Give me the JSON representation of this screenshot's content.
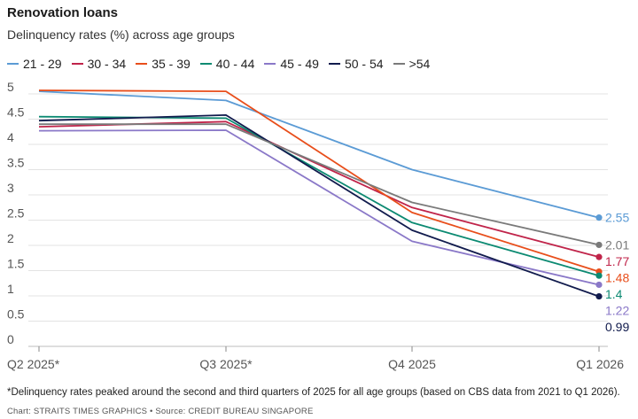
{
  "header": {
    "title": "Renovation loans",
    "subtitle": "Delinquency rates (%) across age groups"
  },
  "footer": {
    "footnote": "*Delinquency rates peaked around the second and third quarters of 2025 for all age groups (based on CBS data from 2021 to Q1 2026).",
    "credit": "Chart: STRAITS TIMES GRAPHICS • Source: CREDIT BUREAU SINGAPORE"
  },
  "chart_data": {
    "type": "line",
    "title": "Renovation loans",
    "subtitle": "Delinquency rates (%) across age groups",
    "xlabel": "",
    "ylabel": "",
    "categories": [
      "Q2 2025*",
      "Q3 2025*",
      "Q4 2025",
      "Q1 2026"
    ],
    "ylim": [
      0,
      5
    ],
    "yticks": [
      "0",
      "0.5",
      "1",
      "1.5",
      "2",
      "2.5",
      "3",
      "3.5",
      "4",
      "4.5",
      "5"
    ],
    "grid": "horizontal",
    "legend_position": "top",
    "series": [
      {
        "name": "21 - 29",
        "color": "#5b9bd5",
        "values": [
          5.05,
          4.87,
          3.5,
          2.55
        ],
        "end_label": "2.55"
      },
      {
        "name": "30 - 34",
        "color": "#c0244a",
        "values": [
          4.35,
          4.45,
          2.75,
          1.77
        ],
        "end_label": "1.77"
      },
      {
        "name": "35 - 39",
        "color": "#e84e1b",
        "values": [
          5.07,
          5.05,
          2.65,
          1.48
        ],
        "end_label": "1.48"
      },
      {
        "name": "40 - 44",
        "color": "#0c8a72",
        "values": [
          4.55,
          4.52,
          2.45,
          1.4
        ],
        "end_label": "1.4"
      },
      {
        "name": "45 - 49",
        "color": "#8a78c8",
        "values": [
          4.27,
          4.28,
          2.08,
          1.22
        ],
        "end_label": "1.22"
      },
      {
        "name": "50 - 54",
        "color": "#111b4d",
        "values": [
          4.47,
          4.58,
          2.3,
          0.99
        ],
        "end_label": "0.99"
      },
      {
        "name": ">54",
        "color": "#7a7a7a",
        "values": [
          4.4,
          4.4,
          2.85,
          2.01
        ],
        "end_label": "2.01"
      }
    ]
  }
}
